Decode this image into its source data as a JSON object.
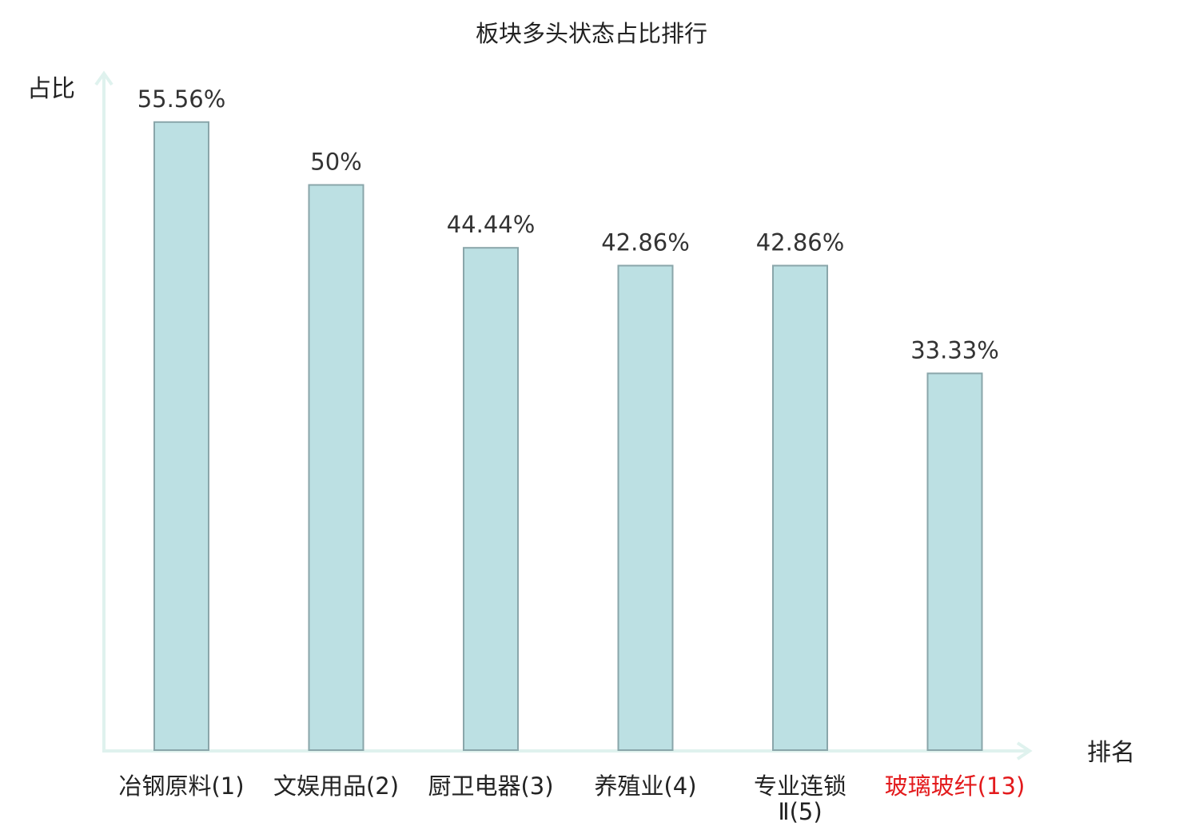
{
  "chart_data": {
    "type": "bar",
    "title": "板块多头状态占比排行",
    "xlabel": "排名",
    "ylabel": "占比",
    "ylim": [
      0,
      60
    ],
    "grid": false,
    "categories": [
      {
        "lines": [
          "冶钢原料(1)"
        ],
        "highlight": false
      },
      {
        "lines": [
          "文娱用品(2)"
        ],
        "highlight": false
      },
      {
        "lines": [
          "厨卫电器(3)"
        ],
        "highlight": false
      },
      {
        "lines": [
          "养殖业(4)"
        ],
        "highlight": false
      },
      {
        "lines": [
          "专业连锁",
          "Ⅱ(5)"
        ],
        "highlight": false
      },
      {
        "lines": [
          "玻璃玻纤(13)"
        ],
        "highlight": true
      }
    ],
    "values": [
      55.56,
      50,
      44.44,
      42.86,
      42.86,
      33.33
    ],
    "value_labels": [
      "55.56%",
      "50%",
      "44.44%",
      "42.86%",
      "42.86%",
      "33.33%"
    ]
  },
  "colors": {
    "bar_fill": "#bce0e3",
    "bar_stroke": "#8aa6aa",
    "axis": "#dff2ee",
    "text": "#333333",
    "highlight_text": "#e31a1c"
  }
}
